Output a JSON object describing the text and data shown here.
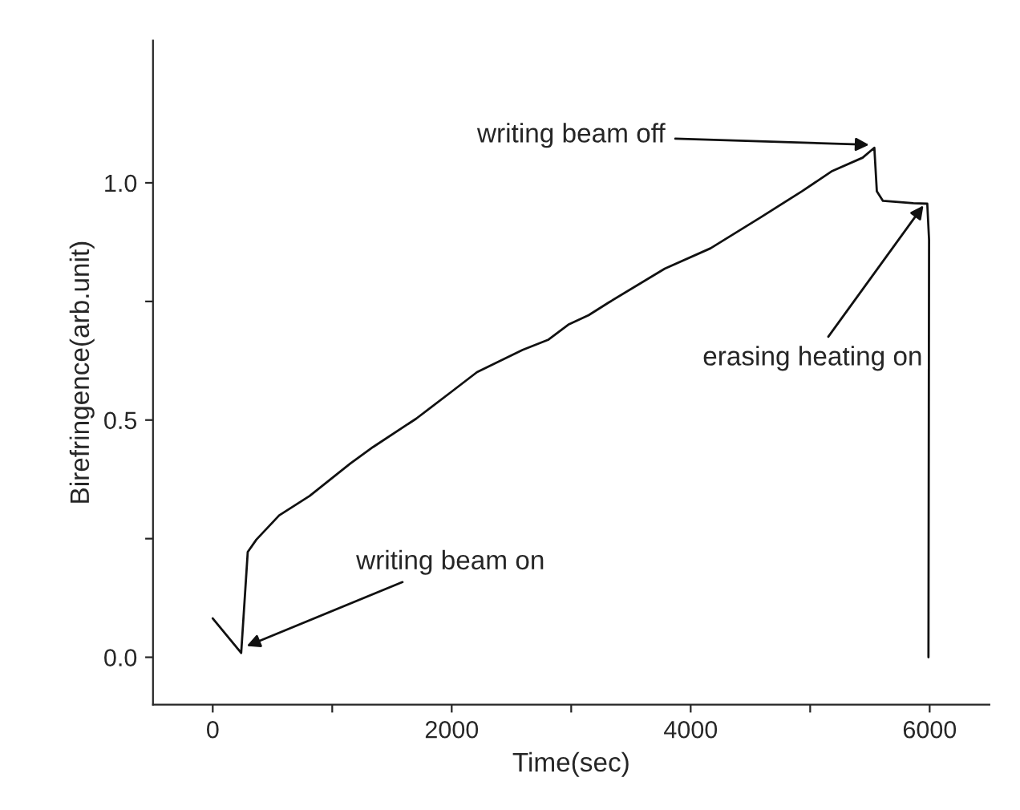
{
  "chart_data": {
    "type": "line",
    "xlabel": "Time(sec)",
    "ylabel": "Birefringence(arb.unit)",
    "x": [
      0,
      238,
      293,
      365,
      556,
      811,
      1150,
      1341,
      1703,
      2000,
      2212,
      2594,
      2806,
      2976,
      3146,
      3316,
      3783,
      4166,
      4590,
      4930,
      5185,
      5439,
      5537,
      5558,
      5609,
      5864,
      5980,
      5995,
      5990
    ],
    "series": [
      {
        "color": "#111111",
        "values": [
          0.082,
          0.009,
          0.222,
          0.248,
          0.299,
          0.34,
          0.408,
          0.443,
          0.503,
          0.56,
          0.601,
          0.648,
          0.669,
          0.701,
          0.721,
          0.748,
          0.819,
          0.862,
          0.928,
          0.982,
          1.025,
          1.053,
          1.074,
          0.982,
          0.962,
          0.957,
          0.956,
          0.88,
          0.0
        ]
      }
    ],
    "xlim": [
      -500,
      6500
    ],
    "ylim": [
      -0.1,
      1.3
    ],
    "xticks": [
      0,
      {
        "value": 1000,
        "label": null
      },
      2000,
      {
        "value": 3000,
        "label": null
      },
      4000,
      {
        "value": 5000,
        "label": null
      },
      6000
    ],
    "yticks": [
      {
        "value": 0,
        "label": "0.0"
      },
      {
        "value": 0.25,
        "label": null
      },
      {
        "value": 0.5,
        "label": "0.5"
      },
      {
        "value": 0.75,
        "label": null
      },
      {
        "value": 1.0,
        "label": "1.0"
      }
    ],
    "annotations": [
      {
        "text": "writing beam on",
        "x": 250,
        "y": 0.02
      },
      {
        "text": "writing beam off",
        "x": 5530,
        "y": 1.08
      },
      {
        "text": "erasing heating on",
        "x": 5970,
        "y": 0.96
      }
    ],
    "grid": false,
    "legend": false,
    "marker": "none",
    "line_style": "solid"
  }
}
